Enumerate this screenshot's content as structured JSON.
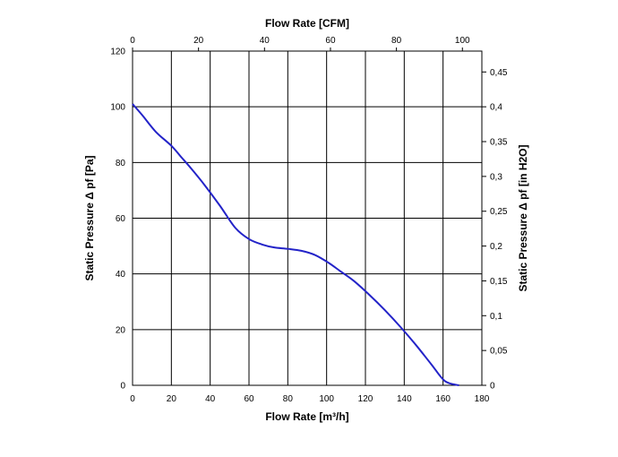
{
  "chart_data": {
    "type": "line",
    "x_bottom": {
      "label": "Flow Rate [m³/h]",
      "range": [
        0,
        180
      ],
      "ticks": [
        "0",
        "20",
        "40",
        "60",
        "80",
        "100",
        "120",
        "140",
        "160",
        "180"
      ]
    },
    "x_top": {
      "label": "Flow Rate [CFM]",
      "range": [
        0,
        105.9
      ],
      "ticks": [
        "0",
        "20",
        "40",
        "60",
        "80",
        "100"
      ]
    },
    "y_left": {
      "label": "Static Pressure Δ pf [Pa]",
      "range": [
        0,
        120
      ],
      "ticks": [
        "0",
        "20",
        "40",
        "60",
        "80",
        "100",
        "120"
      ]
    },
    "y_right": {
      "label": "Static Pressure Δ pf [in H2O]",
      "range": [
        0,
        0.48
      ],
      "ticks": [
        "0",
        "0,05",
        "0,1",
        "0,15",
        "0,2",
        "0,25",
        "0,3",
        "0,35",
        "0,4",
        "0,45"
      ]
    },
    "grid": true,
    "series": [
      {
        "color": "#2323c8",
        "x": [
          0,
          5,
          12,
          20,
          25,
          30,
          37,
          45,
          53,
          60,
          67,
          73,
          80,
          87,
          94,
          101,
          107,
          114,
          122,
          130,
          138,
          146,
          154,
          161,
          168.2
        ],
        "y": [
          101,
          97,
          91,
          86,
          82,
          78,
          72,
          64.5,
          56.5,
          52.5,
          50.5,
          49.5,
          49,
          48.3,
          46.8,
          44,
          41,
          37.5,
          32.5,
          27,
          21,
          14.5,
          7.5,
          1.5,
          0
        ]
      }
    ]
  }
}
